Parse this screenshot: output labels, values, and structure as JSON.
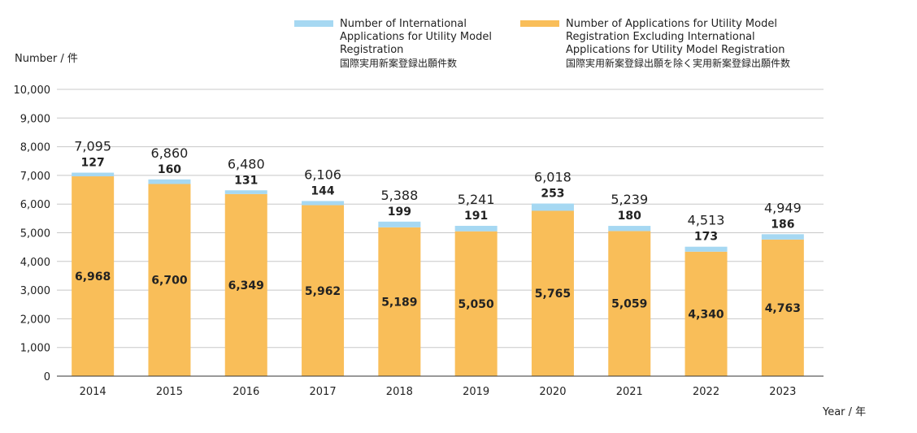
{
  "legend": {
    "international": {
      "line1": "Number of International",
      "line2": "Applications for Utility Model",
      "line3": "Registration",
      "line4": "国際実用新案登録出願件数"
    },
    "excluding": {
      "line1": "Number of Applications for Utility Model",
      "line2": "Registration Excluding International",
      "line3": "Applications for Utility Model Registration",
      "line4": "国際実用新案登録出願を除く実用新案登録出願件数"
    }
  },
  "colors": {
    "international": "#a6d8f2",
    "excluding": "#f9be59",
    "grid": "#c8c8c8",
    "axis": "#333333"
  },
  "chart_data": {
    "type": "bar",
    "stacked": true,
    "ylabel": "Number / 件",
    "xlabel": "Year / 年",
    "ylim": [
      0,
      10000
    ],
    "y_ticks": [
      "0",
      "1,000",
      "2,000",
      "3,000",
      "4,000",
      "5,000",
      "6,000",
      "7,000",
      "8,000",
      "9,000",
      "10,000"
    ],
    "categories": [
      "2014",
      "2015",
      "2016",
      "2017",
      "2018",
      "2019",
      "2020",
      "2021",
      "2022",
      "2023"
    ],
    "series": [
      {
        "name": "Number of Applications for Utility Model Registration Excluding International Applications for Utility Model Registration",
        "values": [
          6968,
          6700,
          6349,
          5962,
          5189,
          5050,
          5765,
          5059,
          4340,
          4763
        ],
        "labels": [
          "6,968",
          "6,700",
          "6,349",
          "5,962",
          "5,189",
          "5,050",
          "5,765",
          "5,059",
          "4,340",
          "4,763"
        ]
      },
      {
        "name": "Number of International Applications for Utility Model Registration",
        "values": [
          127,
          160,
          131,
          144,
          199,
          191,
          253,
          180,
          173,
          186
        ],
        "labels": [
          "127",
          "160",
          "131",
          "144",
          "199",
          "191",
          "253",
          "180",
          "173",
          "186"
        ]
      }
    ],
    "totals": [
      7095,
      6860,
      6480,
      6106,
      5388,
      5241,
      6018,
      5239,
      4513,
      4949
    ],
    "total_labels": [
      "7,095",
      "6,860",
      "6,480",
      "6,106",
      "5,388",
      "5,241",
      "6,018",
      "5,239",
      "4,513",
      "4,949"
    ],
    "grid": true,
    "legend_position": "top"
  }
}
